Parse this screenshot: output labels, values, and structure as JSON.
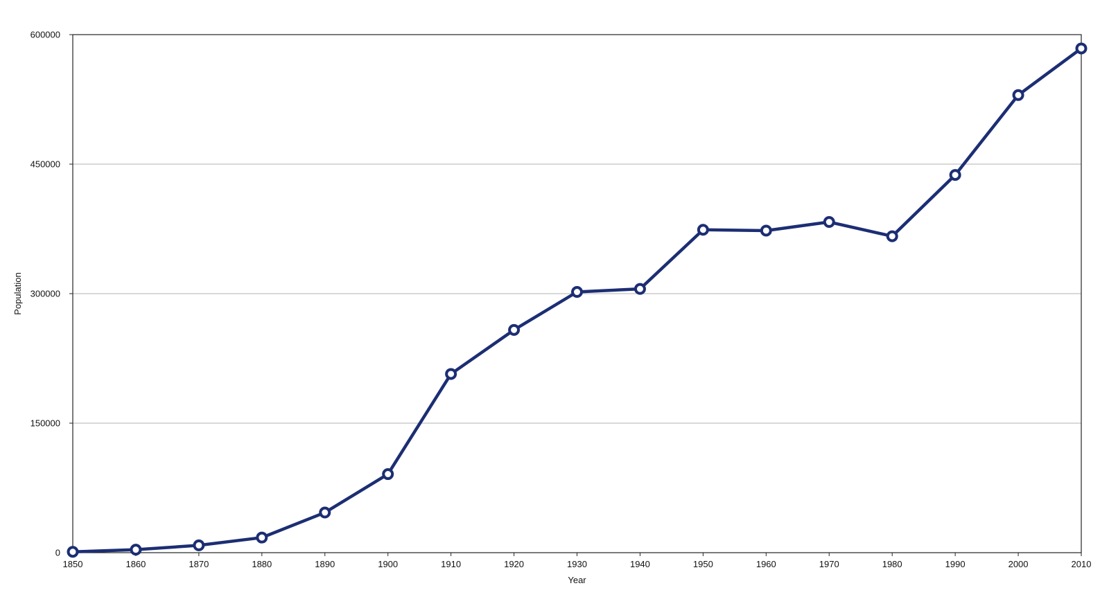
{
  "chart_data": {
    "type": "line",
    "title": "",
    "xlabel": "Year",
    "ylabel": "Population",
    "x": [
      1850,
      1860,
      1870,
      1880,
      1890,
      1900,
      1910,
      1920,
      1930,
      1940,
      1950,
      1960,
      1970,
      1980,
      1990,
      2000,
      2010
    ],
    "series": [
      {
        "values": [
          1000,
          3500,
          8500,
          17500,
          46500,
          91000,
          207000,
          258000,
          302000,
          305500,
          374000,
          373000,
          383000,
          366500,
          437500,
          530000,
          584000
        ]
      }
    ],
    "xlim": [
      1850,
      2010
    ],
    "ylim": [
      0,
      600000
    ],
    "yticks": [
      0,
      150000,
      300000,
      450000,
      600000
    ],
    "xticks": [
      1850,
      1860,
      1870,
      1880,
      1890,
      1900,
      1910,
      1920,
      1930,
      1940,
      1950,
      1960,
      1970,
      1980,
      1990,
      2000,
      2010
    ],
    "grid": "horizontal",
    "legend": "none",
    "colors": {
      "line": "#1c2e73",
      "marker_fill": "#ffffff",
      "grid": "#b0b0b0",
      "frame": "#222222"
    }
  }
}
